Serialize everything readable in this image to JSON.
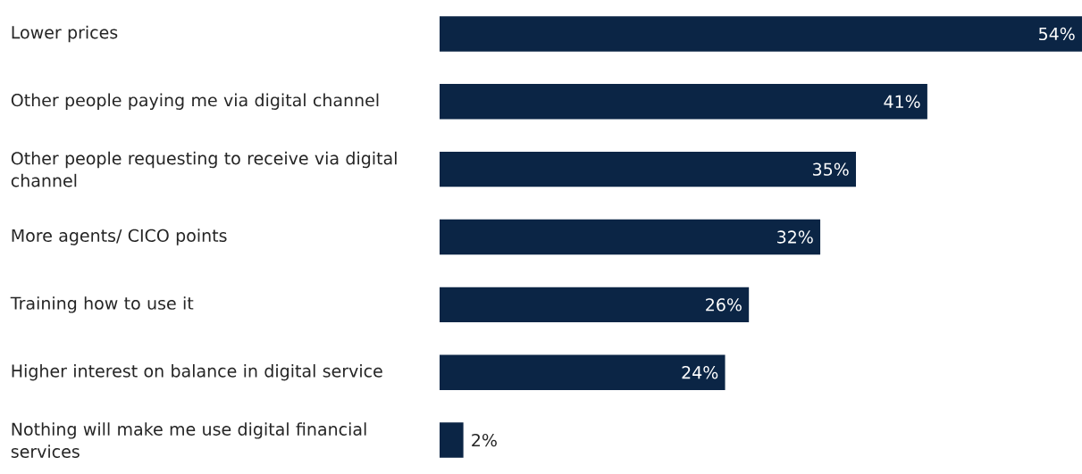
{
  "chart_data": {
    "type": "bar",
    "orientation": "horizontal",
    "categories": [
      "Lower prices",
      "Other people paying me via digital channel",
      "Other people requesting to receive via digital channel",
      "More agents/ CICO points",
      "Training how to use it",
      "Higher interest on balance in digital service",
      "Nothing will make me use digital financial services"
    ],
    "values": [
      54,
      41,
      35,
      32,
      26,
      24,
      2
    ],
    "value_labels": [
      "54%",
      "41%",
      "35%",
      "32%",
      "26%",
      "24%",
      "2%"
    ],
    "color": "#0b2545"
  }
}
